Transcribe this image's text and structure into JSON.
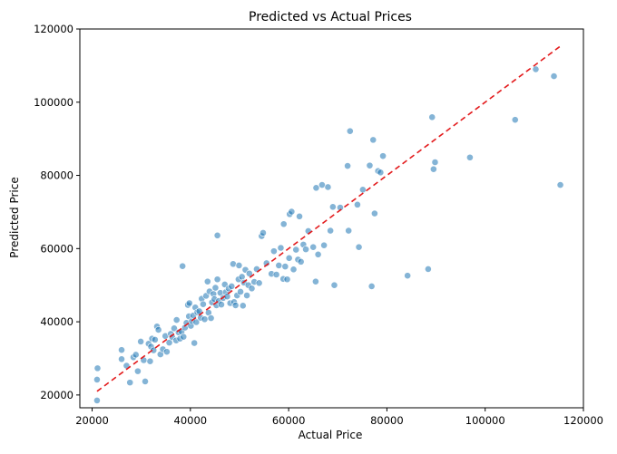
{
  "chart_data": {
    "type": "scatter",
    "title": "Predicted vs Actual Prices",
    "xlabel": "Actual Price",
    "ylabel": "Predicted Price",
    "xlim": [
      17500,
      120000
    ],
    "ylim": [
      16500,
      120000
    ],
    "xticks": [
      20000,
      40000,
      60000,
      80000,
      100000,
      120000
    ],
    "yticks": [
      20000,
      40000,
      60000,
      80000,
      100000,
      120000
    ],
    "point_color": "#1f77b4",
    "reference_line": {
      "style": "dashed",
      "color": "#e31a1c",
      "x": [
        21000,
        115500
      ],
      "y": [
        21000,
        115500
      ]
    },
    "points": [
      [
        21000,
        18500
      ],
      [
        21000,
        24200
      ],
      [
        21100,
        27300
      ],
      [
        26000,
        32300
      ],
      [
        26000,
        29800
      ],
      [
        27000,
        28000
      ],
      [
        27700,
        23400
      ],
      [
        28400,
        30300
      ],
      [
        28900,
        31000
      ],
      [
        29300,
        26500
      ],
      [
        29900,
        34600
      ],
      [
        30500,
        29500
      ],
      [
        30800,
        23700
      ],
      [
        31500,
        34000
      ],
      [
        31800,
        29200
      ],
      [
        32000,
        33200
      ],
      [
        32200,
        35400
      ],
      [
        32500,
        32200
      ],
      [
        32800,
        35100
      ],
      [
        33200,
        38700
      ],
      [
        33500,
        37800
      ],
      [
        33900,
        31100
      ],
      [
        34400,
        32500
      ],
      [
        34900,
        36100
      ],
      [
        35200,
        31800
      ],
      [
        35700,
        34300
      ],
      [
        36000,
        36700
      ],
      [
        36300,
        35800
      ],
      [
        36700,
        38200
      ],
      [
        37100,
        34900
      ],
      [
        37200,
        40500
      ],
      [
        37600,
        37100
      ],
      [
        37900,
        35400
      ],
      [
        38200,
        37300
      ],
      [
        38400,
        55200
      ],
      [
        38600,
        35900
      ],
      [
        38900,
        38400
      ],
      [
        39200,
        39700
      ],
      [
        39500,
        44600
      ],
      [
        39700,
        41500
      ],
      [
        39800,
        45100
      ],
      [
        40100,
        38900
      ],
      [
        40300,
        40200
      ],
      [
        40600,
        41700
      ],
      [
        40800,
        34200
      ],
      [
        41000,
        43900
      ],
      [
        41200,
        39900
      ],
      [
        41400,
        42600
      ],
      [
        41800,
        42900
      ],
      [
        42100,
        41100
      ],
      [
        42300,
        46300
      ],
      [
        42600,
        44800
      ],
      [
        42900,
        40700
      ],
      [
        43200,
        47100
      ],
      [
        43500,
        51000
      ],
      [
        43700,
        42500
      ],
      [
        43900,
        48300
      ],
      [
        44200,
        41000
      ],
      [
        44400,
        45300
      ],
      [
        44700,
        47600
      ],
      [
        44900,
        46200
      ],
      [
        45100,
        49300
      ],
      [
        45300,
        44500
      ],
      [
        45500,
        51600
      ],
      [
        45500,
        63600
      ],
      [
        45800,
        45700
      ],
      [
        46100,
        47900
      ],
      [
        46300,
        44700
      ],
      [
        46700,
        46500
      ],
      [
        47000,
        50200
      ],
      [
        47200,
        48100
      ],
      [
        47500,
        46900
      ],
      [
        47800,
        49100
      ],
      [
        48100,
        45100
      ],
      [
        48400,
        49700
      ],
      [
        48700,
        55800
      ],
      [
        48900,
        45400
      ],
      [
        49200,
        44500
      ],
      [
        49500,
        47200
      ],
      [
        49800,
        51600
      ],
      [
        49900,
        55400
      ],
      [
        50200,
        48200
      ],
      [
        50500,
        52300
      ],
      [
        50700,
        44400
      ],
      [
        50900,
        50700
      ],
      [
        51200,
        54200
      ],
      [
        51500,
        47200
      ],
      [
        51800,
        50000
      ],
      [
        52000,
        53200
      ],
      [
        52500,
        49100
      ],
      [
        53000,
        50900
      ],
      [
        53500,
        54400
      ],
      [
        54000,
        50600
      ],
      [
        54500,
        63400
      ],
      [
        54800,
        64300
      ],
      [
        55500,
        56000
      ],
      [
        56500,
        53100
      ],
      [
        57000,
        59300
      ],
      [
        57500,
        52900
      ],
      [
        58000,
        55400
      ],
      [
        58400,
        60200
      ],
      [
        58900,
        51700
      ],
      [
        59000,
        66700
      ],
      [
        59300,
        55100
      ],
      [
        59700,
        51600
      ],
      [
        60100,
        57400
      ],
      [
        60200,
        69400
      ],
      [
        60600,
        70100
      ],
      [
        61000,
        54300
      ],
      [
        61500,
        59700
      ],
      [
        61900,
        57000
      ],
      [
        62200,
        68800
      ],
      [
        62500,
        56400
      ],
      [
        63000,
        61100
      ],
      [
        63500,
        59800
      ],
      [
        64000,
        64800
      ],
      [
        65000,
        60400
      ],
      [
        65500,
        51000
      ],
      [
        65600,
        76600
      ],
      [
        66000,
        58400
      ],
      [
        66800,
        77400
      ],
      [
        67200,
        60900
      ],
      [
        68000,
        76800
      ],
      [
        68500,
        64900
      ],
      [
        69000,
        71400
      ],
      [
        69300,
        50000
      ],
      [
        70500,
        71200
      ],
      [
        72000,
        82600
      ],
      [
        72200,
        64900
      ],
      [
        72500,
        92100
      ],
      [
        74000,
        72000
      ],
      [
        74300,
        60400
      ],
      [
        75100,
        76100
      ],
      [
        76500,
        82700
      ],
      [
        76900,
        49700
      ],
      [
        77200,
        89700
      ],
      [
        77500,
        69600
      ],
      [
        78200,
        81200
      ],
      [
        78700,
        80800
      ],
      [
        79200,
        85300
      ],
      [
        84200,
        52600
      ],
      [
        88400,
        54400
      ],
      [
        89200,
        95900
      ],
      [
        89500,
        81700
      ],
      [
        89800,
        83600
      ],
      [
        96900,
        84900
      ],
      [
        106100,
        95200
      ],
      [
        110300,
        109000
      ],
      [
        114000,
        107100
      ],
      [
        115300,
        77400
      ]
    ]
  }
}
